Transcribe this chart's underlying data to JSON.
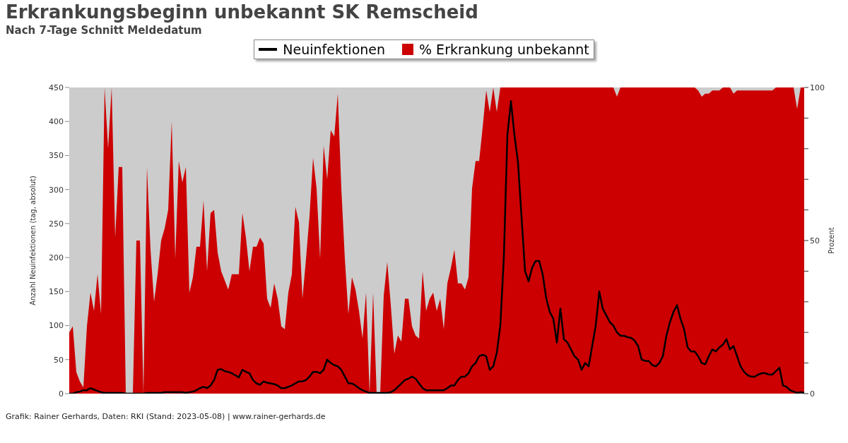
{
  "chart_data": {
    "type": "line",
    "title": "Erkrankungsbeginn unbekannt SK Remscheid",
    "subtitle": "Nach 7-Tage Schnitt Meldedatum",
    "ylabel": "Anzahl Neuinfektionen (tag, absolut)",
    "y2label": "Prozent",
    "annotations": [
      "Grafik: Rainer Gerhards, Daten: RKI (Stand: 2023-05-08) | www.rainer-gerhards.de"
    ],
    "categories": [
      null,
      null,
      null,
      null,
      null,
      null,
      null,
      null,
      null,
      null,
      null,
      null,
      null,
      null,
      null,
      null,
      null,
      null,
      null,
      null,
      null,
      null,
      null,
      null,
      null,
      null,
      null,
      null,
      null,
      null,
      null,
      null,
      null,
      null,
      null,
      null,
      null,
      null,
      null,
      null,
      null,
      null,
      null,
      null,
      null,
      null,
      null,
      null,
      null,
      null,
      null,
      null,
      null,
      null,
      null,
      null,
      null,
      null,
      null,
      null,
      null,
      null,
      null,
      null,
      null,
      null,
      null,
      null,
      null,
      null,
      null,
      null,
      null,
      null,
      null,
      null,
      null,
      null,
      null,
      null,
      null,
      null,
      null,
      null,
      null,
      null,
      null,
      null,
      null,
      null,
      null,
      null,
      null,
      null,
      null,
      null,
      null,
      null,
      null,
      null,
      null,
      null,
      null,
      null,
      null,
      null,
      null,
      null,
      null,
      null,
      null,
      null,
      null,
      null,
      null,
      null,
      null,
      null,
      null,
      null,
      null,
      null,
      null,
      null,
      null,
      null,
      null,
      null,
      null,
      null,
      null,
      null,
      null,
      null,
      null,
      null,
      null,
      null,
      null,
      null,
      null,
      null,
      null,
      null,
      null,
      null,
      null,
      null,
      null,
      null,
      null,
      null,
      null,
      null,
      null,
      null,
      null,
      null,
      null,
      null,
      null,
      null,
      null,
      null,
      null,
      null,
      null,
      null,
      null,
      null,
      null,
      null,
      null,
      null,
      null,
      null,
      null,
      null,
      null,
      null,
      null,
      null,
      null,
      null,
      null,
      null,
      null,
      null,
      null,
      null,
      null,
      null,
      null,
      null,
      null,
      null,
      null,
      null,
      null,
      null,
      null,
      null,
      null,
      null,
      null,
      null,
      null,
      null,
      null
    ],
    "series": [
      {
        "name": "Neuinfektionen",
        "axis": "y",
        "color": "#000000",
        "values": [
          0,
          0,
          2,
          3,
          5,
          5,
          8,
          6,
          4,
          2,
          1,
          1,
          1,
          1,
          1,
          1,
          0,
          0,
          0,
          0,
          0,
          0,
          1,
          1,
          1,
          1,
          1,
          2,
          2,
          2,
          2,
          2,
          2,
          1,
          2,
          3,
          5,
          8,
          10,
          8,
          12,
          20,
          35,
          36,
          33,
          32,
          30,
          27,
          24,
          35,
          32,
          30,
          20,
          15,
          13,
          18,
          16,
          15,
          14,
          12,
          8,
          8,
          10,
          12,
          15,
          18,
          18,
          20,
          25,
          32,
          32,
          30,
          35,
          50,
          45,
          42,
          40,
          35,
          25,
          15,
          15,
          12,
          8,
          5,
          3,
          1,
          1,
          1,
          1,
          1,
          1,
          2,
          5,
          10,
          15,
          20,
          22,
          25,
          22,
          15,
          8,
          5,
          5,
          5,
          5,
          5,
          5,
          8,
          12,
          12,
          20,
          25,
          25,
          30,
          40,
          45,
          55,
          57,
          55,
          35,
          40,
          60,
          100,
          200,
          380,
          430,
          380,
          340,
          260,
          180,
          165,
          185,
          195,
          195,
          175,
          140,
          120,
          110,
          75,
          125,
          80,
          75,
          65,
          55,
          50,
          35,
          45,
          40,
          70,
          100,
          150,
          125,
          115,
          105,
          100,
          90,
          85,
          85,
          83,
          82,
          78,
          70,
          50,
          48,
          48,
          42,
          40,
          45,
          55,
          85,
          105,
          120,
          130,
          110,
          95,
          68,
          62,
          62,
          55,
          45,
          43,
          55,
          65,
          62,
          68,
          72,
          80,
          65,
          70,
          55,
          40,
          32,
          27,
          25,
          25,
          28,
          30,
          30,
          28,
          28,
          33,
          38,
          12,
          10,
          5,
          3,
          1,
          2,
          1
        ]
      },
      {
        "name": "% Erkrankung unbekannt",
        "type": "area",
        "axis": "y2",
        "color": "#cc0000",
        "values": [
          20,
          22,
          7,
          4,
          2,
          22,
          33,
          27,
          39,
          26,
          100,
          80,
          100,
          51,
          74,
          74,
          0,
          0,
          0,
          50,
          50,
          0,
          74,
          47,
          30,
          39,
          50,
          54,
          60,
          89,
          44,
          76,
          69,
          74,
          33,
          38,
          48,
          48,
          63,
          40,
          59,
          60,
          46,
          40,
          37,
          34,
          39,
          39,
          39,
          59,
          51,
          40,
          48,
          48,
          51,
          49,
          31,
          28,
          36,
          31,
          22,
          21,
          33,
          39,
          61,
          56,
          31,
          44,
          58,
          77,
          67,
          44,
          81,
          70,
          86,
          84,
          98,
          67,
          44,
          26,
          38,
          34,
          27,
          18,
          33,
          0,
          33,
          0,
          0,
          32,
          43,
          29,
          13,
          19,
          17,
          31,
          31,
          22,
          19,
          18,
          40,
          27,
          31,
          33,
          27,
          31,
          21,
          36,
          41,
          47,
          36,
          36,
          34,
          38,
          67,
          76,
          76,
          87,
          99,
          92,
          100,
          92,
          100,
          100,
          100,
          100,
          100,
          100,
          100,
          100,
          100,
          100,
          100,
          100,
          100,
          100,
          100,
          100,
          100,
          100,
          100,
          100,
          100,
          100,
          100,
          100,
          100,
          100,
          100,
          100,
          100,
          100,
          100,
          100,
          100,
          97,
          100,
          100,
          100,
          100,
          100,
          100,
          100,
          100,
          100,
          100,
          100,
          100,
          100,
          100,
          100,
          100,
          100,
          100,
          100,
          100,
          100,
          100,
          99,
          97,
          98,
          98,
          99,
          99,
          99,
          100,
          100,
          100,
          98,
          99,
          99,
          99,
          99,
          99,
          99,
          99,
          99,
          99,
          99,
          99,
          100,
          100,
          100,
          100,
          100,
          100,
          93,
          100,
          100
        ]
      }
    ],
    "ylim": [
      0,
      450
    ],
    "yticks": [
      0,
      50,
      100,
      150,
      200,
      250,
      300,
      350,
      400,
      450
    ],
    "y2lim": [
      0,
      100
    ],
    "y2ticks": [
      0,
      {
        "value": 10,
        "label": null
      },
      {
        "value": 20,
        "label": null
      },
      {
        "value": 30,
        "label": null
      },
      {
        "value": 40,
        "label": null
      },
      50,
      {
        "value": 60,
        "label": null
      },
      {
        "value": 70,
        "label": null
      },
      {
        "value": 80,
        "label": null
      },
      {
        "value": 90,
        "label": null
      },
      100
    ],
    "legend": "top",
    "marker": "none",
    "line_style": "solid"
  }
}
